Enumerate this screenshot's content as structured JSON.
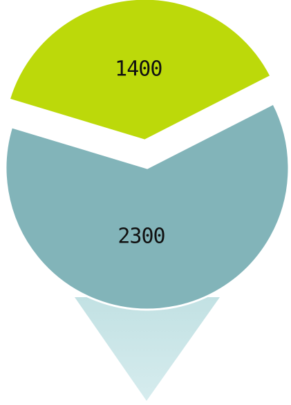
{
  "chart_data": {
    "type": "pie",
    "title": "",
    "categories": [
      "",
      ""
    ],
    "values": [
      1400,
      2300
    ],
    "data_labels": [
      "1400",
      "2300"
    ],
    "legend": "none",
    "colors": {
      "slices": [
        "#bcd90a",
        "#82b4b9"
      ],
      "pointer": "#c6e3e5",
      "separator": "#ffffff"
    },
    "style": "exploded-pie-pin"
  }
}
